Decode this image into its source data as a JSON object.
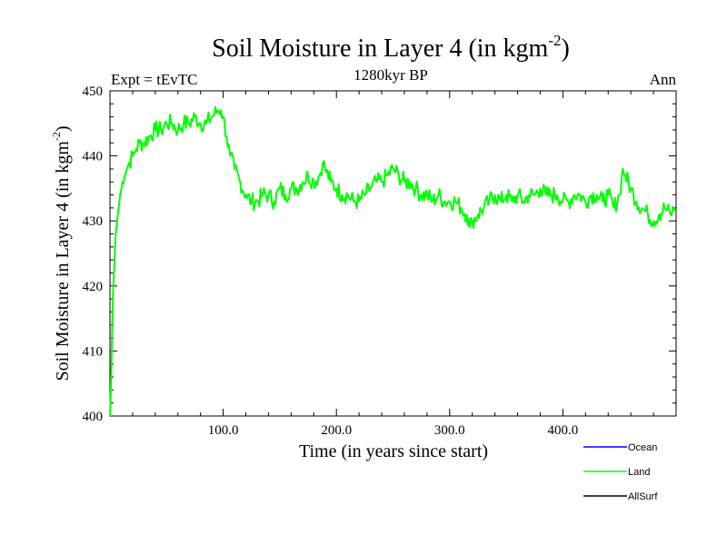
{
  "chart_data": {
    "type": "line",
    "title": "Soil Moisture in Layer 4 (in kgm",
    "title_sup": "-2",
    "title_close": ")",
    "subtitle_left": "Expt = tEvTC",
    "subtitle_center": "1280kyr BP",
    "subtitle_right": "Ann",
    "xlabel": "Time (in years since start)",
    "ylabel": "Soil Moisture in Layer 4 (in kgm",
    "ylabel_sup": "-2",
    "ylabel_close": ")",
    "xlim": [
      0,
      500
    ],
    "ylim": [
      400,
      450
    ],
    "x_ticks": [
      100,
      200,
      300,
      400
    ],
    "x_tick_labels": [
      "100.0",
      "200.0",
      "300.0",
      "400.0"
    ],
    "y_ticks": [
      400,
      410,
      420,
      430,
      440,
      450
    ],
    "y_tick_labels": [
      "400",
      "410",
      "420",
      "430",
      "440",
      "450"
    ],
    "legend": [
      {
        "name": "Ocean",
        "color": "#0000ff"
      },
      {
        "name": "Land",
        "color": "#00ff00"
      },
      {
        "name": "AllSurf",
        "color": "#000000"
      }
    ],
    "series": [
      {
        "name": "Land",
        "color": "#00ff00",
        "x": [
          0,
          1,
          2,
          3,
          4,
          5,
          7,
          9,
          11,
          13,
          15,
          17,
          20,
          23,
          26,
          30,
          35,
          40,
          45,
          50,
          55,
          60,
          65,
          70,
          75,
          80,
          85,
          90,
          95,
          98,
          100,
          103,
          106,
          110,
          115,
          120,
          125,
          130,
          135,
          140,
          145,
          150,
          155,
          160,
          165,
          170,
          175,
          180,
          185,
          188,
          190,
          195,
          200,
          205,
          210,
          215,
          220,
          225,
          230,
          235,
          240,
          245,
          250,
          255,
          260,
          265,
          270,
          275,
          280,
          285,
          290,
          295,
          300,
          305,
          310,
          315,
          318,
          320,
          325,
          330,
          335,
          340,
          345,
          350,
          355,
          360,
          365,
          370,
          375,
          380,
          385,
          390,
          395,
          400,
          405,
          410,
          415,
          420,
          425,
          430,
          435,
          440,
          445,
          450,
          453,
          455,
          460,
          465,
          470,
          475,
          480,
          485,
          490,
          495,
          499
        ],
        "values": [
          400,
          405,
          414,
          420,
          424,
          428,
          431,
          434,
          436,
          437,
          438,
          439,
          440,
          441,
          442,
          442,
          443,
          444,
          444,
          445,
          445,
          444,
          445,
          445,
          446,
          445,
          445,
          446,
          447,
          447,
          446,
          443,
          440,
          438,
          436,
          434,
          433,
          433,
          434,
          434,
          433,
          435,
          434,
          435,
          435,
          436,
          437,
          436,
          437,
          439,
          438,
          436,
          435,
          434,
          434,
          433,
          433,
          434,
          435,
          436,
          436,
          437,
          438,
          437,
          436,
          436,
          435,
          434,
          434,
          433,
          434,
          433,
          433,
          433,
          432,
          431,
          429,
          430,
          431,
          432,
          433,
          434,
          433,
          434,
          433,
          434,
          433,
          434,
          434,
          435,
          434,
          434,
          434,
          433,
          433,
          434,
          434,
          433,
          434,
          434,
          433,
          434,
          432,
          434,
          438,
          437,
          435,
          433,
          432,
          431,
          430,
          431,
          432,
          431,
          432
        ]
      }
    ]
  }
}
